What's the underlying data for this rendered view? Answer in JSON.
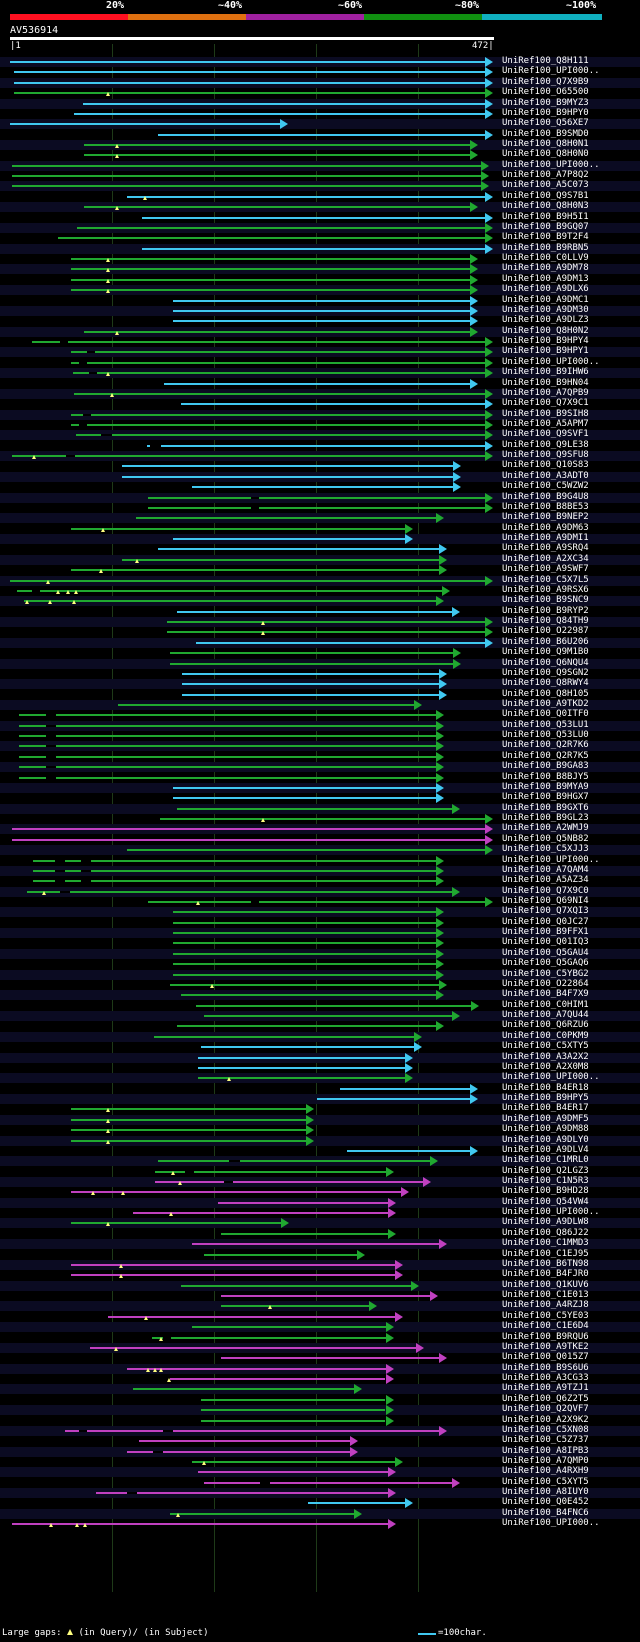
{
  "header": {
    "pct_labels": [
      "20%",
      "~40%",
      "~60%",
      "~80%",
      "~100%"
    ],
    "colors": [
      "#ff1020",
      "#e07010",
      "#a020a0",
      "#109010",
      "#10b0c0"
    ]
  },
  "query": {
    "name": "AV536914",
    "start": "1",
    "end": "472"
  },
  "legend": {
    "left": "Large gaps:  (in Query)/ ─ (in Subject)",
    "left_prefix": "Large gaps:",
    "left_mid": "(in Query)/",
    "left_suffix": "(in Subject)",
    "right": "=100char."
  },
  "colors": {
    "cyan": "#40c8f0",
    "green": "#20a830",
    "magenta": "#c040c0",
    "gap_marker": "#ffff80"
  },
  "hits": [
    {
      "label": "UniRef100_Q8H111",
      "s": 1,
      "e": 472,
      "c": "cyan"
    },
    {
      "label": "UniRef100_UPI000..",
      "s": 5,
      "e": 472,
      "c": "cyan"
    },
    {
      "label": "UniRef100_Q7X9B9",
      "s": 5,
      "e": 472,
      "c": "cyan"
    },
    {
      "label": "UniRef100_O65500",
      "s": 5,
      "e": 472,
      "c": "green",
      "gq": [
        97
      ]
    },
    {
      "label": "UniRef100_B9MYZ3",
      "s": 72,
      "e": 472,
      "c": "cyan"
    },
    {
      "label": "UniRef100_B9HPY0",
      "s": 63,
      "e": 472,
      "c": "cyan"
    },
    {
      "label": "UniRef100_Q56XE7",
      "s": 1,
      "e": 272,
      "c": "cyan"
    },
    {
      "label": "UniRef100_B9SMD0",
      "s": 145,
      "e": 472,
      "c": "cyan"
    },
    {
      "label": "UniRef100_Q8H0N1",
      "s": 73,
      "e": 457,
      "c": "green",
      "gq": [
        105
      ]
    },
    {
      "label": "UniRef100_Q8H0N0",
      "s": 73,
      "e": 457,
      "c": "green",
      "gq": [
        105
      ]
    },
    {
      "label": "UniRef100_UPI000..",
      "s": 3,
      "e": 468,
      "c": "green"
    },
    {
      "label": "UniRef100_A7P8Q2",
      "s": 3,
      "e": 468,
      "c": "green"
    },
    {
      "label": "UniRef100_A5C073",
      "s": 3,
      "e": 468,
      "c": "green"
    },
    {
      "label": "UniRef100_Q9S7B1",
      "s": 115,
      "e": 472,
      "c": "cyan",
      "gq": [
        133
      ]
    },
    {
      "label": "UniRef100_Q8H0N3",
      "s": 73,
      "e": 457,
      "c": "green",
      "gq": [
        105
      ]
    },
    {
      "label": "UniRef100_B9H5I1",
      "s": 130,
      "e": 472,
      "c": "cyan"
    },
    {
      "label": "UniRef100_B9GQ07",
      "s": 66,
      "e": 472,
      "c": "green"
    },
    {
      "label": "UniRef100_B9T2F4",
      "s": 48,
      "e": 472,
      "c": "green"
    },
    {
      "label": "UniRef100_B9RBN5",
      "s": 130,
      "e": 472,
      "c": "cyan"
    },
    {
      "label": "UniRef100_C0LLV9",
      "s": 60,
      "e": 457,
      "c": "green",
      "gq": [
        97
      ]
    },
    {
      "label": "UniRef100_A9DM78",
      "s": 60,
      "e": 457,
      "c": "green",
      "gq": [
        97
      ]
    },
    {
      "label": "UniRef100_A9DM13",
      "s": 60,
      "e": 457,
      "c": "green",
      "gq": [
        97
      ]
    },
    {
      "label": "UniRef100_A9DLX6",
      "s": 60,
      "e": 457,
      "c": "green",
      "gq": [
        97
      ]
    },
    {
      "label": "UniRef100_A9DMC1",
      "s": 160,
      "e": 457,
      "c": "cyan"
    },
    {
      "label": "UniRef100_A9DM30",
      "s": 160,
      "e": 457,
      "c": "cyan"
    },
    {
      "label": "UniRef100_A9DLZ3",
      "s": 160,
      "e": 457,
      "c": "cyan"
    },
    {
      "label": "UniRef100_Q8H0N2",
      "s": 73,
      "e": 457,
      "c": "green",
      "gq": [
        105
      ]
    },
    {
      "label": "UniRef100_B9HPY4",
      "s": 22,
      "e": 474,
      "c": "green",
      "gs": [
        [
          50,
          58
        ]
      ]
    },
    {
      "label": "UniRef100_B9HPY1",
      "s": 60,
      "e": 474,
      "c": "green",
      "gs": [
        [
          76,
          84
        ]
      ]
    },
    {
      "label": "UniRef100_UPI000..",
      "s": 60,
      "e": 474,
      "c": "green",
      "gs": [
        [
          68,
          76
        ]
      ]
    },
    {
      "label": "UniRef100_B9IHW6",
      "s": 62,
      "e": 472,
      "c": "green",
      "gq": [
        97
      ],
      "gs": [
        [
          78,
          86
        ]
      ]
    },
    {
      "label": "UniRef100_B9HN04",
      "s": 151,
      "e": 457,
      "c": "cyan"
    },
    {
      "label": "UniRef100_A7QPB9",
      "s": 63,
      "e": 472,
      "c": "green",
      "gq": [
        100
      ]
    },
    {
      "label": "UniRef100_Q7X9C1",
      "s": 168,
      "e": 472,
      "c": "cyan"
    },
    {
      "label": "UniRef100_B9SIH8",
      "s": 60,
      "e": 472,
      "c": "green",
      "gs": [
        [
          72,
          80
        ]
      ]
    },
    {
      "label": "UniRef100_A5APM7",
      "s": 60,
      "e": 472,
      "c": "green",
      "gs": [
        [
          68,
          76
        ]
      ]
    },
    {
      "label": "UniRef100_Q9SVF1",
      "s": 65,
      "e": 474,
      "c": "green",
      "gs": [
        [
          90,
          100
        ]
      ]
    },
    {
      "label": "UniRef100_Q9LE38",
      "s": 135,
      "e": 472,
      "c": "cyan",
      "gs": [
        [
          138,
          148
        ]
      ]
    },
    {
      "label": "UniRef100_Q9SFU8",
      "s": 3,
      "e": 474,
      "c": "green",
      "gq": [
        24
      ],
      "gs": [
        [
          56,
          64
        ]
      ]
    },
    {
      "label": "UniRef100_Q10S83",
      "s": 110,
      "e": 441,
      "c": "cyan"
    },
    {
      "label": "UniRef100_A3ADT0",
      "s": 110,
      "e": 441,
      "c": "cyan"
    },
    {
      "label": "UniRef100_C5WZW2",
      "s": 178,
      "e": 441,
      "c": "cyan"
    },
    {
      "label": "UniRef100_B9G4U8",
      "s": 136,
      "e": 472,
      "c": "green",
      "gs": [
        [
          236,
          244
        ]
      ]
    },
    {
      "label": "UniRef100_B8BE53",
      "s": 136,
      "e": 472,
      "c": "green",
      "gs": [
        [
          236,
          244
        ]
      ]
    },
    {
      "label": "UniRef100_B9NEP2",
      "s": 124,
      "e": 424,
      "c": "green"
    },
    {
      "label": "UniRef100_A9DM63",
      "s": 60,
      "e": 394,
      "c": "green",
      "gq": [
        92
      ]
    },
    {
      "label": "UniRef100_A9DMI1",
      "s": 160,
      "e": 394,
      "c": "cyan"
    },
    {
      "label": "UniRef100_A9SRQ4",
      "s": 145,
      "e": 427,
      "c": "cyan"
    },
    {
      "label": "UniRef100_A2XC34",
      "s": 110,
      "e": 427,
      "c": "green",
      "gq": [
        125
      ]
    },
    {
      "label": "UniRef100_A9SWF7",
      "s": 60,
      "e": 427,
      "c": "green",
      "gq": [
        90
      ]
    },
    {
      "label": "UniRef100_C5X7L5",
      "s": 1,
      "e": 474,
      "c": "green",
      "gq": [
        38
      ]
    },
    {
      "label": "UniRef100_A9RSX6",
      "s": 8,
      "e": 430,
      "c": "green",
      "gq": [
        48,
        58,
        65
      ],
      "gs": [
        [
          22,
          30
        ]
      ]
    },
    {
      "label": "UniRef100_B9SNC9",
      "s": 15,
      "e": 424,
      "c": "green",
      "gq": [
        18,
        40,
        63
      ]
    },
    {
      "label": "UniRef100_B9RYP2",
      "s": 164,
      "e": 440,
      "c": "cyan"
    },
    {
      "label": "UniRef100_Q84TH9",
      "s": 154,
      "e": 472,
      "c": "green",
      "gq": [
        248
      ]
    },
    {
      "label": "UniRef100_O22987",
      "s": 154,
      "e": 472,
      "c": "green",
      "gq": [
        248
      ]
    },
    {
      "label": "UniRef100_B6U206",
      "s": 182,
      "e": 472,
      "c": "cyan"
    },
    {
      "label": "UniRef100_Q9M1B0",
      "s": 157,
      "e": 441,
      "c": "green"
    },
    {
      "label": "UniRef100_Q6NQU4",
      "s": 157,
      "e": 441,
      "c": "green"
    },
    {
      "label": "UniRef100_Q9SGN2",
      "s": 169,
      "e": 427,
      "c": "cyan"
    },
    {
      "label": "UniRef100_Q8RWY4",
      "s": 169,
      "e": 427,
      "c": "cyan"
    },
    {
      "label": "UniRef100_Q8H105",
      "s": 169,
      "e": 427,
      "c": "cyan"
    },
    {
      "label": "UniRef100_A9TKD2",
      "s": 106,
      "e": 403,
      "c": "green"
    },
    {
      "label": "UniRef100_Q0ITF0",
      "s": 10,
      "e": 424,
      "c": "green",
      "gs": [
        [
          36,
          46
        ]
      ]
    },
    {
      "label": "UniRef100_Q53LU1",
      "s": 10,
      "e": 424,
      "c": "green",
      "gs": [
        [
          36,
          46
        ]
      ]
    },
    {
      "label": "UniRef100_Q53LU0",
      "s": 10,
      "e": 424,
      "c": "green",
      "gs": [
        [
          36,
          46
        ]
      ]
    },
    {
      "label": "UniRef100_Q2R7K6",
      "s": 10,
      "e": 424,
      "c": "green",
      "gs": [
        [
          36,
          46
        ]
      ]
    },
    {
      "label": "UniRef100_Q2R7K5",
      "s": 10,
      "e": 424,
      "c": "green",
      "gs": [
        [
          36,
          46
        ]
      ]
    },
    {
      "label": "UniRef100_B9GA83",
      "s": 10,
      "e": 424,
      "c": "green",
      "gs": [
        [
          36,
          46
        ]
      ]
    },
    {
      "label": "UniRef100_B8BJY5",
      "s": 10,
      "e": 424,
      "c": "green",
      "gs": [
        [
          36,
          46
        ]
      ]
    },
    {
      "label": "UniRef100_B9MYA9",
      "s": 160,
      "e": 424,
      "c": "cyan"
    },
    {
      "label": "UniRef100_B9HGX7",
      "s": 160,
      "e": 424,
      "c": "cyan"
    },
    {
      "label": "UniRef100_B9GXT6",
      "s": 164,
      "e": 440,
      "c": "green"
    },
    {
      "label": "UniRef100_B9GL23",
      "s": 147,
      "e": 472,
      "c": "green",
      "gq": [
        248
      ]
    },
    {
      "label": "UniRef100_A2WMJ9",
      "s": 3,
      "e": 472,
      "c": "magenta"
    },
    {
      "label": "UniRef100_Q5NB82",
      "s": 3,
      "e": 472,
      "c": "magenta"
    },
    {
      "label": "UniRef100_C5XJJ3",
      "s": 115,
      "e": 472,
      "c": "green"
    },
    {
      "label": "UniRef100_UPI000..",
      "s": 23,
      "e": 424,
      "c": "green",
      "gs": [
        [
          45,
          55
        ],
        [
          70,
          80
        ]
      ]
    },
    {
      "label": "UniRef100_A7QAM4",
      "s": 23,
      "e": 424,
      "c": "green",
      "gs": [
        [
          45,
          55
        ],
        [
          70,
          80
        ]
      ]
    },
    {
      "label": "UniRef100_A5AZ34",
      "s": 23,
      "e": 424,
      "c": "green",
      "gs": [
        [
          45,
          55
        ],
        [
          70,
          80
        ]
      ]
    },
    {
      "label": "UniRef100_Q7X9C0",
      "s": 18,
      "e": 440,
      "c": "green",
      "gq": [
        34
      ],
      "gs": [
        [
          50,
          60
        ]
      ]
    },
    {
      "label": "UniRef100_Q69NI4",
      "s": 136,
      "e": 472,
      "c": "green",
      "gq": [
        184
      ],
      "gs": [
        [
          236,
          244
        ]
      ]
    },
    {
      "label": "UniRef100_Q7XQI3",
      "s": 160,
      "e": 424,
      "c": "green"
    },
    {
      "label": "UniRef100_Q0JC27",
      "s": 160,
      "e": 424,
      "c": "green"
    },
    {
      "label": "UniRef100_B9FFX1",
      "s": 160,
      "e": 424,
      "c": "green"
    },
    {
      "label": "UniRef100_Q01IQ3",
      "s": 160,
      "e": 424,
      "c": "green"
    },
    {
      "label": "UniRef100_Q5GAU4",
      "s": 160,
      "e": 424,
      "c": "green"
    },
    {
      "label": "UniRef100_Q5GAQ6",
      "s": 160,
      "e": 424,
      "c": "green"
    },
    {
      "label": "UniRef100_C5YBG2",
      "s": 160,
      "e": 424,
      "c": "green"
    },
    {
      "label": "UniRef100_O22864",
      "s": 157,
      "e": 427,
      "c": "green",
      "gq": [
        198
      ]
    },
    {
      "label": "UniRef100_B4F7X9",
      "s": 168,
      "e": 424,
      "c": "green"
    },
    {
      "label": "UniRef100_C0HIM1",
      "s": 182,
      "e": 458,
      "c": "green"
    },
    {
      "label": "UniRef100_A7QU44",
      "s": 190,
      "e": 440,
      "c": "green"
    },
    {
      "label": "UniRef100_Q6RZU6",
      "s": 164,
      "e": 424,
      "c": "green"
    },
    {
      "label": "UniRef100_C0PKM9",
      "s": 141,
      "e": 403,
      "c": "green"
    },
    {
      "label": "UniRef100_C5XTY5",
      "s": 187,
      "e": 403,
      "c": "cyan"
    },
    {
      "label": "UniRef100_A3A2X2",
      "s": 184,
      "e": 394,
      "c": "cyan"
    },
    {
      "label": "UniRef100_A2X0M8",
      "s": 184,
      "e": 394,
      "c": "cyan"
    },
    {
      "label": "UniRef100_UPI000..",
      "s": 184,
      "e": 394,
      "c": "green",
      "gq": [
        215
      ]
    },
    {
      "label": "UniRef100_B4ER18",
      "s": 323,
      "e": 457,
      "c": "cyan"
    },
    {
      "label": "UniRef100_B9HPY5",
      "s": 300,
      "e": 457,
      "c": "cyan"
    },
    {
      "label": "UniRef100_B4ER17",
      "s": 60,
      "e": 297,
      "c": "green",
      "gq": [
        97
      ]
    },
    {
      "label": "UniRef100_A9DMF5",
      "s": 60,
      "e": 297,
      "c": "green",
      "gq": [
        97
      ]
    },
    {
      "label": "UniRef100_A9DM88",
      "s": 60,
      "e": 297,
      "c": "green",
      "gq": [
        97
      ]
    },
    {
      "label": "UniRef100_A9DLY0",
      "s": 60,
      "e": 297,
      "c": "green",
      "gq": [
        97
      ]
    },
    {
      "label": "UniRef100_A9DLV4",
      "s": 330,
      "e": 457,
      "c": "cyan"
    },
    {
      "label": "UniRef100_C1MRL0",
      "s": 145,
      "e": 418,
      "c": "green",
      "gs": [
        [
          215,
          225
        ]
      ]
    },
    {
      "label": "UniRef100_Q2LGZ3",
      "s": 142,
      "e": 375,
      "c": "green",
      "gq": [
        160
      ],
      "gs": [
        [
          172,
          180
        ]
      ]
    },
    {
      "label": "UniRef100_C1N5R3",
      "s": 142,
      "e": 412,
      "c": "magenta",
      "gq": [
        167
      ],
      "gs": [
        [
          210,
          218
        ]
      ]
    },
    {
      "label": "UniRef100_B9HD28",
      "s": 60,
      "e": 390,
      "c": "magenta",
      "gq": [
        82,
        111
      ]
    },
    {
      "label": "UniRef100_Q54VW4",
      "s": 204,
      "e": 377,
      "c": "magenta"
    },
    {
      "label": "UniRef100_UPI000..",
      "s": 121,
      "e": 377,
      "c": "magenta",
      "gq": [
        158
      ]
    },
    {
      "label": "UniRef100_A9DLW8",
      "s": 60,
      "e": 273,
      "c": "green",
      "gq": [
        97
      ]
    },
    {
      "label": "UniRef100_Q86J22",
      "s": 207,
      "e": 377,
      "c": "green"
    },
    {
      "label": "UniRef100_C1MMD3",
      "s": 178,
      "e": 427,
      "c": "magenta"
    },
    {
      "label": "UniRef100_C1EJ95",
      "s": 190,
      "e": 347,
      "c": "green"
    },
    {
      "label": "UniRef100_B6TN98",
      "s": 60,
      "e": 384,
      "c": "magenta",
      "gq": [
        109
      ]
    },
    {
      "label": "UniRef100_B4FJR0",
      "s": 60,
      "e": 384,
      "c": "magenta",
      "gq": [
        109
      ]
    },
    {
      "label": "UniRef100_Q1KUV6",
      "s": 168,
      "e": 400,
      "c": "green"
    },
    {
      "label": "UniRef100_C1E013",
      "s": 207,
      "e": 418,
      "c": "magenta"
    },
    {
      "label": "UniRef100_A4RZJ8",
      "s": 207,
      "e": 359,
      "c": "green",
      "gq": [
        255
      ]
    },
    {
      "label": "UniRef100_C5YE03",
      "s": 97,
      "e": 384,
      "c": "magenta",
      "gq": [
        134
      ]
    },
    {
      "label": "UniRef100_C1E6D4",
      "s": 178,
      "e": 375,
      "c": "green"
    },
    {
      "label": "UniRef100_B9RQU6",
      "s": 139,
      "e": 375,
      "c": "green",
      "gq": [
        148
      ],
      "gs": [
        [
          150,
          158
        ]
      ]
    },
    {
      "label": "UniRef100_A9TKE2",
      "s": 79,
      "e": 405,
      "c": "magenta",
      "gq": [
        104
      ]
    },
    {
      "label": "UniRef100_Q015Z7",
      "s": 207,
      "e": 427,
      "c": "magenta"
    },
    {
      "label": "UniRef100_B9S6U6",
      "s": 115,
      "e": 375,
      "c": "magenta",
      "gq": [
        136,
        142,
        148
      ]
    },
    {
      "label": "UniRef100_A3CG33",
      "s": 157,
      "e": 375,
      "c": "magenta",
      "gq": [
        156
      ]
    },
    {
      "label": "UniRef100_A9TZJ1",
      "s": 121,
      "e": 344,
      "c": "green"
    },
    {
      "label": "UniRef100_Q6Z2T5",
      "s": 187,
      "e": 375,
      "c": "green"
    },
    {
      "label": "UniRef100_Q2QVF7",
      "s": 187,
      "e": 375,
      "c": "green"
    },
    {
      "label": "UniRef100_A2X9K2",
      "s": 187,
      "e": 375,
      "c": "green"
    },
    {
      "label": "UniRef100_C5XN08",
      "s": 55,
      "e": 427,
      "c": "magenta",
      "gs": [
        [
          68,
          76
        ],
        [
          150,
          160
        ]
      ]
    },
    {
      "label": "UniRef100_C5Z737",
      "s": 127,
      "e": 340,
      "c": "magenta"
    },
    {
      "label": "UniRef100_A8IPB3",
      "s": 115,
      "e": 340,
      "c": "magenta",
      "gs": [
        [
          140,
          150
        ]
      ]
    },
    {
      "label": "UniRef100_A7QMP0",
      "s": 178,
      "e": 384,
      "c": "green",
      "gq": [
        190
      ]
    },
    {
      "label": "UniRef100_A4RXH9",
      "s": 184,
      "e": 377,
      "c": "magenta"
    },
    {
      "label": "UniRef100_C5XYT5",
      "s": 190,
      "e": 440,
      "c": "magenta",
      "gs": [
        [
          245,
          255
        ]
      ]
    },
    {
      "label": "UniRef100_A8IUY0",
      "s": 85,
      "e": 377,
      "c": "magenta",
      "gs": [
        [
          115,
          125
        ]
      ]
    },
    {
      "label": "UniRef100_Q0E452",
      "s": 292,
      "e": 394,
      "c": "cyan"
    },
    {
      "label": "UniRef100_B4FNC6",
      "s": 157,
      "e": 344,
      "c": "green",
      "gq": [
        165
      ]
    },
    {
      "label": "UniRef100_UPI000..",
      "s": 3,
      "e": 377,
      "c": "magenta",
      "gq": [
        41,
        66,
        74
      ]
    }
  ]
}
